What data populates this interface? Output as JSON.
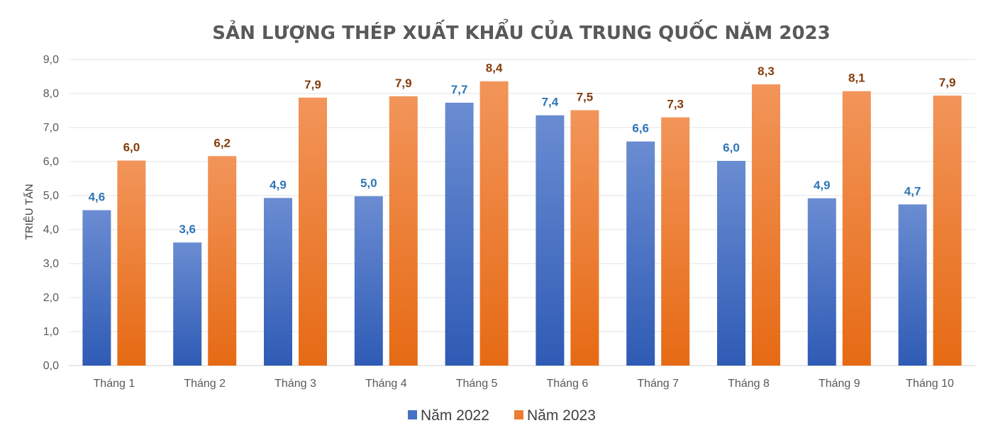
{
  "chart_data": {
    "type": "bar",
    "title": "SẢN LƯỢNG THÉP XUẤT KHẨU CỦA TRUNG QUỐC NĂM 2023",
    "xlabel": "",
    "ylabel": "TRIỆU TẤN",
    "ylim": [
      0,
      9
    ],
    "yticks": [
      "0,0",
      "1,0",
      "2,0",
      "3,0",
      "4,0",
      "5,0",
      "6,0",
      "7,0",
      "8,0",
      "9,0"
    ],
    "grid": true,
    "legend_position": "bottom",
    "categories": [
      "Tháng 1",
      "Tháng 2",
      "Tháng 3",
      "Tháng 4",
      "Tháng 5",
      "Tháng 6",
      "Tháng 7",
      "Tháng 8",
      "Tháng 9",
      "Tháng 10"
    ],
    "series": [
      {
        "name": "Năm 2022",
        "color": "#4472C4",
        "label_color": "#2E75B6",
        "values": [
          4.57,
          3.62,
          4.93,
          4.98,
          7.73,
          7.36,
          6.59,
          6.02,
          4.92,
          4.74
        ],
        "labels": [
          "4,6",
          "3,6",
          "4,9",
          "5,0",
          "7,7",
          "7,4",
          "6,6",
          "6,0",
          "4,9",
          "4,7"
        ]
      },
      {
        "name": "Năm 2023",
        "color": "#ED7D31",
        "label_color": "#843C0C",
        "values": [
          6.03,
          6.16,
          7.88,
          7.92,
          8.36,
          7.51,
          7.3,
          8.27,
          8.07,
          7.94
        ],
        "labels": [
          "6,0",
          "6,2",
          "7,9",
          "7,9",
          "8,4",
          "7,5",
          "7,3",
          "8,3",
          "8,1",
          "7,9"
        ]
      }
    ]
  }
}
